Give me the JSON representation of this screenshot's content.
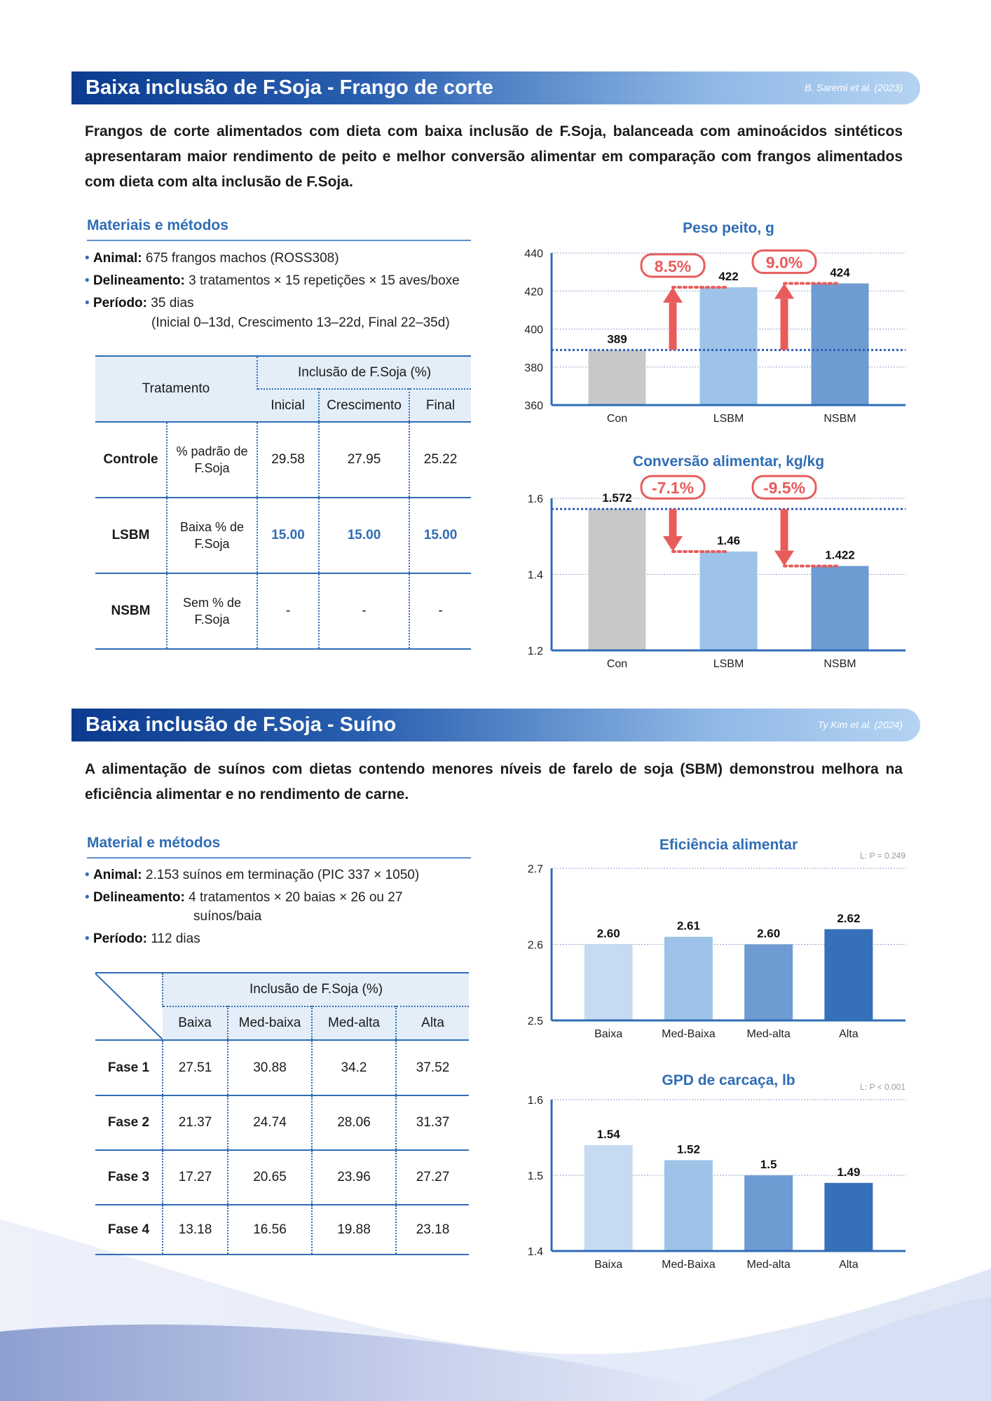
{
  "section1": {
    "title": "Baixa inclusão de F.Soja - Frango de corte",
    "reference": "B. Saremi et al. (2023)",
    "summary": "Frangos de corte alimentados com dieta com baixa inclusão de F.Soja, balanceada com aminoácidos sintéticos apresentaram maior rendimento de peito e melhor conversão alimentar em comparação com frangos alimentados com dieta com alta inclusão de F.Soja.",
    "methods_title": "Materiais e métodos",
    "bullets": [
      {
        "label": "Animal:",
        "text": " 675 frangos machos (ROSS308)"
      },
      {
        "label": "Delineamento:",
        "text": " 3 tratamentos × 15 repetições × 15 aves/boxe"
      },
      {
        "label": "Período:",
        "text": " 35 dias",
        "extra": "(Inicial 0–13d, Crescimento 13–22d, Final 22–35d)"
      }
    ],
    "table": {
      "corner": "Tratamento",
      "group": "Inclusão de F.Soja (%)",
      "columns": [
        "Inicial",
        "Crescimento",
        "Final"
      ],
      "rows": [
        {
          "name": "Controle",
          "desc": "% padrão de F.Soja",
          "values": [
            "29.58",
            "27.95",
            "25.22"
          ]
        },
        {
          "name": "LSBM",
          "desc": "Baixa % de F.Soja",
          "values": [
            "15.00",
            "15.00",
            "15.00"
          ]
        },
        {
          "name": "NSBM",
          "desc": "Sem % de F.Soja",
          "values": [
            "-",
            "-",
            "-"
          ]
        }
      ]
    }
  },
  "section2": {
    "title": "Baixa inclusão de F.Soja - Suíno",
    "reference": "Ty Kim et al. (2024)",
    "summary": "A alimentação de suínos com dietas contendo menores níveis de farelo de soja (SBM) demonstrou melhora na eficiência alimentar e no rendimento de carne.",
    "methods_title": "Material e métodos",
    "bullets": [
      {
        "label": "Animal:",
        "text": " 2.153 suínos em terminação (PIC 337 × 1050)"
      },
      {
        "label": "Delineamento:",
        "text": " 4 tratamentos × 20 baias × 26 ou 27",
        "extra": "suínos/baia"
      },
      {
        "label": "Período:",
        "text": " 112 dias"
      }
    ],
    "table": {
      "group": "Inclusão de F.Soja (%)",
      "columns": [
        "Baixa",
        "Med-baixa",
        "Med-alta",
        "Alta"
      ],
      "rows": [
        {
          "name": "Fase 1",
          "values": [
            "27.51",
            "30.88",
            "34.2",
            "37.52"
          ]
        },
        {
          "name": "Fase 2",
          "values": [
            "21.37",
            "24.74",
            "28.06",
            "31.37"
          ]
        },
        {
          "name": "Fase 3",
          "values": [
            "17.27",
            "20.65",
            "23.96",
            "27.27"
          ]
        },
        {
          "name": "Fase 4",
          "values": [
            "13.18",
            "16.56",
            "19.88",
            "23.18"
          ]
        }
      ]
    }
  },
  "chart_data": [
    {
      "type": "bar",
      "title": "Peso peito, g",
      "categories": [
        "Con",
        "LSBM",
        "NSBM"
      ],
      "values": [
        389,
        422,
        424
      ],
      "value_labels": [
        "389",
        "422",
        "424"
      ],
      "ylim": [
        360,
        440
      ],
      "yticks": [
        "360",
        "380",
        "400",
        "420",
        "440"
      ],
      "grid": true,
      "colors": [
        "#c8c8c8",
        "#9dc3e8",
        "#6e9bd2"
      ],
      "reference_line": 389,
      "annotations": [
        {
          "from": 389,
          "to": 422,
          "target": "LSBM",
          "label": "8.5%"
        },
        {
          "from": 389,
          "to": 424,
          "target": "NSBM",
          "label": "9.0%"
        }
      ]
    },
    {
      "type": "bar",
      "title": "Conversão alimentar, kg/kg",
      "categories": [
        "Con",
        "LSBM",
        "NSBM"
      ],
      "values": [
        1.572,
        1.46,
        1.422
      ],
      "value_labels": [
        "1.572",
        "1.46",
        "1.422"
      ],
      "ylim": [
        1.2,
        1.6
      ],
      "yticks": [
        "1.2",
        "1.4",
        "1.6"
      ],
      "grid": true,
      "colors": [
        "#c8c8c8",
        "#9dc3e8",
        "#6e9bd2"
      ],
      "reference_line": 1.572,
      "annotations": [
        {
          "from": 1.572,
          "to": 1.46,
          "target": "LSBM",
          "label": "-7.1%"
        },
        {
          "from": 1.572,
          "to": 1.422,
          "target": "NSBM",
          "label": "-9.5%"
        }
      ]
    },
    {
      "type": "bar",
      "title": "Eficiência alimentar",
      "note": "L: P = 0.249",
      "categories": [
        "Baixa",
        "Med-Baixa",
        "Med-alta",
        "Alta"
      ],
      "values": [
        2.6,
        2.61,
        2.6,
        2.62
      ],
      "value_labels": [
        "2.60",
        "2.61",
        "2.60",
        "2.62"
      ],
      "ylim": [
        2.5,
        2.7
      ],
      "yticks": [
        "2.5",
        "2.6",
        "2.7"
      ],
      "grid": true,
      "colors": [
        "#c6dbf2",
        "#9dc3e8",
        "#6e9bd2",
        "#3670b9"
      ]
    },
    {
      "type": "bar",
      "title": "GPD de carcaça, lb",
      "note": "L: P < 0.001",
      "categories": [
        "Baixa",
        "Med-Baixa",
        "Med-alta",
        "Alta"
      ],
      "values": [
        1.54,
        1.52,
        1.5,
        1.49
      ],
      "value_labels": [
        "1.54",
        "1.52",
        "1.5",
        "1.49"
      ],
      "ylim": [
        1.4,
        1.6
      ],
      "yticks": [
        "1.4",
        "1.5",
        "1.6"
      ],
      "grid": true,
      "colors": [
        "#c6dbf2",
        "#9dc3e8",
        "#6e9bd2",
        "#3670b9"
      ]
    }
  ],
  "colors": {
    "header_dark": "#0b3b8f",
    "accent_blue": "#2f6db5",
    "highlight_red": "#e85c5c"
  }
}
